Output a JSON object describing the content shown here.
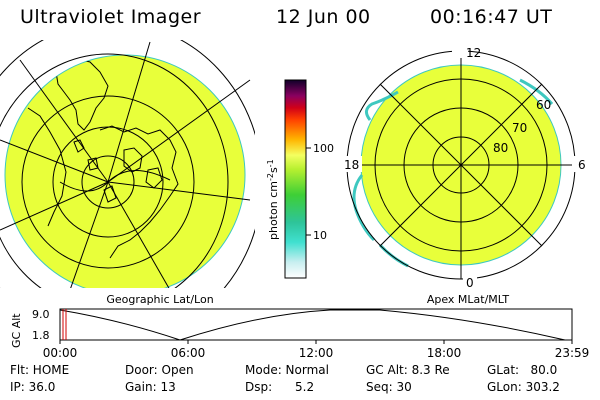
{
  "header": {
    "instrument": "Ultraviolet Imager",
    "date": "12 Jun 00",
    "time": "00:16:47 UT"
  },
  "colorbar": {
    "unit_label": "photon cm",
    "unit_sup1": "-2",
    "unit_mid": "s",
    "unit_sup2": "-1",
    "tick_100": "100",
    "tick_10": "10"
  },
  "left_panel": {
    "caption": "Geographic Lat/Lon",
    "fill_color": "#e8ff3a"
  },
  "right_panel": {
    "caption": "Apex MLat/MLT",
    "mlt_12": "12",
    "mlt_6": "6",
    "mlt_18": "18",
    "mlt_0": "0",
    "lat_60": "60",
    "lat_70": "70",
    "lat_80": "80",
    "fill_color": "#e8ff3a"
  },
  "timeline": {
    "axis_label": "GC Alt",
    "y_top": "9.0",
    "y_bottom": "1.8",
    "ticks": [
      "00:00",
      "06:00",
      "12:00",
      "18:00",
      "23:59"
    ]
  },
  "status": {
    "flt": "Flt: HOME",
    "ip": "IP: 36.0",
    "door": "Door: Open",
    "gain": "Gain: 13",
    "mode": "Mode: Normal",
    "dsp": "Dsp:      5.2",
    "gcalt": "GC Alt: 8.3 Re",
    "seq": "Seq: 30",
    "glat": "GLat:   80.0",
    "glon": "GLon: 303.2"
  }
}
